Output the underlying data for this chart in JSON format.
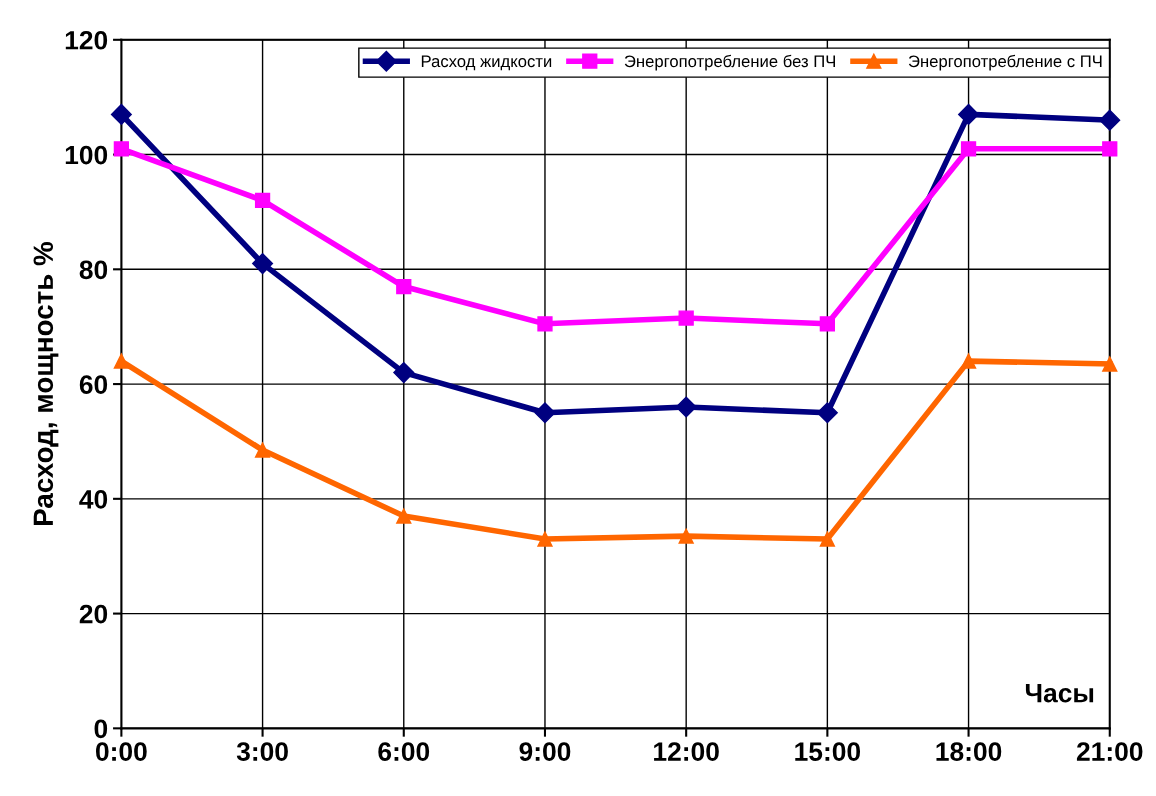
{
  "chart_data": {
    "type": "line",
    "categories": [
      "0:00",
      "3:00",
      "6:00",
      "9:00",
      "12:00",
      "15:00",
      "18:00",
      "21:00"
    ],
    "ylabel": "Расход, мощность %",
    "annotations": [
      "Часы"
    ],
    "ylim": [
      0,
      120
    ],
    "yticks": [
      0,
      20,
      40,
      60,
      80,
      100,
      120
    ],
    "grid": true,
    "legend": "top",
    "line_style": "solid",
    "series": [
      {
        "name": "Расход жидкости",
        "color": "#000080",
        "marker": "diamond",
        "values": [
          107,
          81,
          62,
          55,
          56,
          55,
          107,
          106
        ]
      },
      {
        "name": "Энергопотребление без ПЧ",
        "color": "#ff00ff",
        "marker": "square",
        "values": [
          101,
          92,
          77,
          70.5,
          71.5,
          70.5,
          101,
          101
        ]
      },
      {
        "name": "Энергопотребление с ПЧ",
        "color": "#ff6600",
        "marker": "triangle",
        "values": [
          64,
          48.5,
          37,
          33,
          33.5,
          33,
          64,
          63.5
        ]
      }
    ]
  }
}
